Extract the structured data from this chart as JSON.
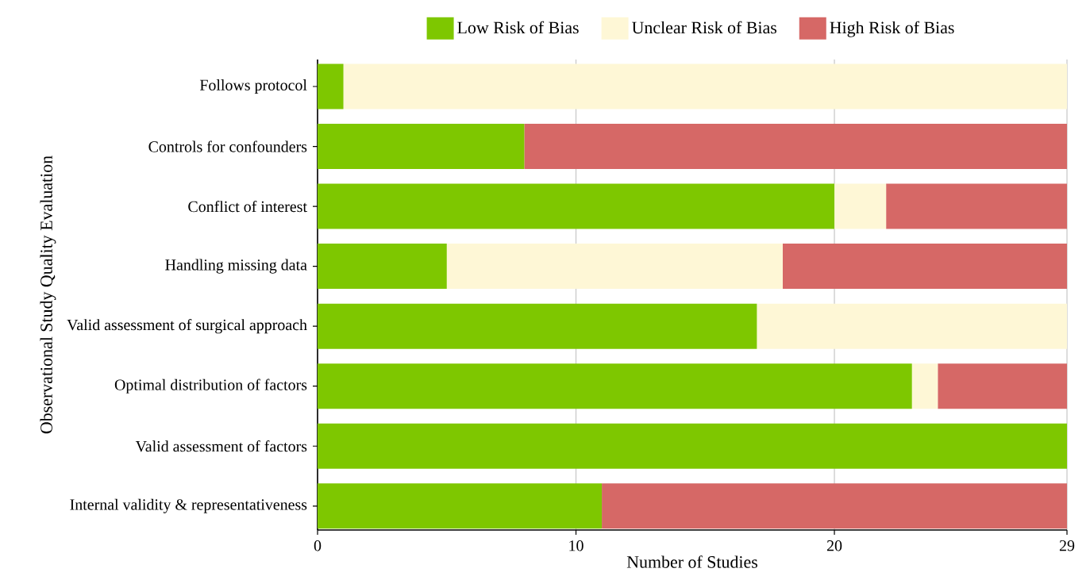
{
  "chart_data": {
    "type": "bar",
    "orientation": "horizontal",
    "stacked": true,
    "xlabel": "Number of Studies",
    "ylabel": "Observational Study Quality Evaluation",
    "categories": [
      "Follows protocol",
      "Controls for confounders",
      "Conflict of interest",
      "Handling missing data",
      "Valid assessment of surgical approach",
      "Optimal distribution of factors",
      "Valid assessment of factors",
      "Internal validity & representativeness"
    ],
    "series": [
      {
        "name": "Low Risk of Bias",
        "color": "#7ec700",
        "values": [
          1,
          8,
          20,
          5,
          17,
          23,
          29,
          11
        ]
      },
      {
        "name": "Unclear Risk of Bias",
        "color": "#fef7d6",
        "values": [
          28,
          0,
          2,
          13,
          12,
          1,
          0,
          0
        ]
      },
      {
        "name": "High Risk of Bias",
        "color": "#d66866",
        "values": [
          0,
          21,
          7,
          11,
          0,
          5,
          0,
          18
        ]
      }
    ],
    "xlim": [
      0,
      29
    ],
    "xticks": [
      0,
      10,
      20,
      29
    ],
    "grid": "x",
    "legend": "top"
  }
}
